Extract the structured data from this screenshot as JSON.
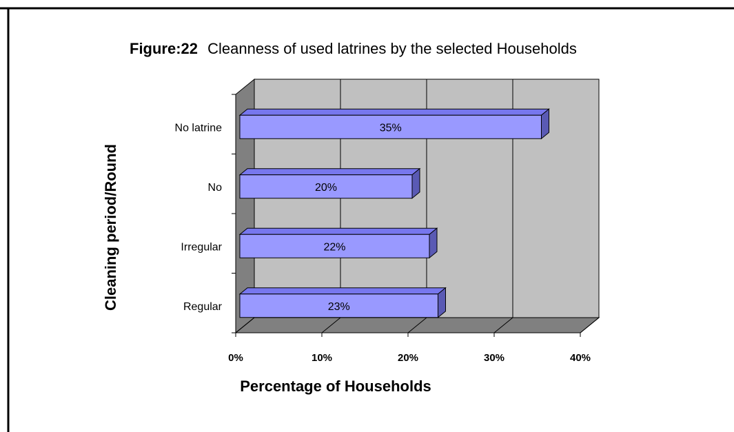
{
  "chart_data": {
    "type": "bar",
    "orientation": "horizontal",
    "title_prefix": "Figure:22",
    "title": "Cleanness of used latrines by the selected Households",
    "xlabel": "Percentage of Households",
    "ylabel": "Cleaning  period/Round",
    "categories": [
      "Regular",
      "Irregular",
      "No",
      "No latrine"
    ],
    "values": [
      23,
      22,
      20,
      35
    ],
    "data_labels": [
      "23%",
      "22%",
      "20%",
      "35%"
    ],
    "xlim": [
      0,
      40
    ],
    "x_ticks": [
      0,
      10,
      20,
      30,
      40
    ],
    "x_tick_labels": [
      "0%",
      "10%",
      "20%",
      "30%",
      "40%"
    ],
    "grid": true,
    "style": "3d",
    "colors": {
      "bar_face": "#9999ff",
      "bar_top": "#7777ee",
      "bar_side": "#5a5ab4",
      "wall": "#c0c0c0",
      "side_wall": "#808080",
      "floor": "#808080"
    }
  }
}
